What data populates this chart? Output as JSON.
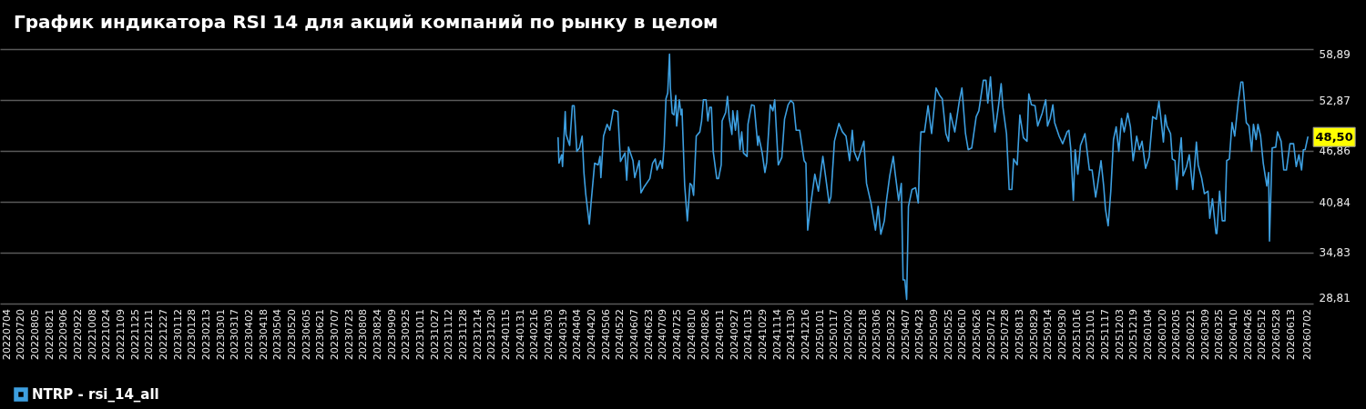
{
  "chart_data": {
    "type": "line",
    "title": "График индикатора RSI 14 для акций компаний по рынку в целом",
    "x": [
      "2024-03-13",
      "2024-03-14",
      "2024-03-17",
      "2024-03-18",
      "2024-03-21",
      "2024-03-22",
      "2024-03-26",
      "2024-03-29",
      "2024-03-31",
      "2024-04-03",
      "2024-04-06",
      "2024-04-09",
      "2024-04-11",
      "2024-04-13",
      "2024-04-17",
      "2024-04-19",
      "2024-04-23",
      "2024-04-27",
      "2024-04-29",
      "2024-04-30",
      "2024-05-03",
      "2024-05-07",
      "2024-05-10",
      "2024-05-14",
      "2024-05-19",
      "2024-05-22",
      "2024-05-27",
      "2024-05-29",
      "2024-05-31",
      "2024-06-05",
      "2024-06-07",
      "2024-06-12",
      "2024-06-14",
      "2024-06-17",
      "2024-06-24",
      "2024-06-27",
      "2024-06-30",
      "2024-07-02",
      "2024-07-06",
      "2024-07-08",
      "2024-07-10",
      "2024-07-12",
      "2024-07-14",
      "2024-07-16",
      "2024-07-17",
      "2024-07-19",
      "2024-07-21",
      "2024-07-23",
      "2024-07-24",
      "2024-07-27",
      "2024-07-29",
      "2024-07-30",
      "2024-08-02",
      "2024-08-05",
      "2024-08-08",
      "2024-08-10",
      "2024-08-12",
      "2024-08-15",
      "2024-08-19",
      "2024-08-21",
      "2024-08-23",
      "2024-08-26",
      "2024-08-28",
      "2024-08-30",
      "2024-09-01",
      "2024-09-03",
      "2024-09-07",
      "2024-09-09",
      "2024-09-12",
      "2024-09-13",
      "2024-09-17",
      "2024-09-19",
      "2024-09-21",
      "2024-09-24",
      "2024-09-25",
      "2024-09-28",
      "2024-09-30",
      "2024-10-03",
      "2024-10-05",
      "2024-10-07",
      "2024-10-11",
      "2024-10-12",
      "2024-10-16",
      "2024-10-19",
      "2024-10-23",
      "2024-10-24",
      "2024-10-28",
      "2024-10-31",
      "2024-11-02",
      "2024-11-06",
      "2024-11-09",
      "2024-11-11",
      "2024-11-15",
      "2024-11-19",
      "2024-11-22",
      "2024-11-26",
      "2024-11-29",
      "2024-12-02",
      "2024-12-05",
      "2024-12-09",
      "2024-12-14",
      "2024-12-16",
      "2024-12-18",
      "2024-12-21",
      "2024-12-26",
      "2024-12-30",
      "2025-01-04",
      "2025-01-07",
      "2025-01-11",
      "2025-01-13",
      "2025-01-17",
      "2025-01-22",
      "2025-01-26",
      "2025-01-30",
      "2025-02-03",
      "2025-02-06",
      "2025-02-08",
      "2025-02-12",
      "2025-02-19",
      "2025-02-22",
      "2025-02-27",
      "2025-03-04",
      "2025-03-07",
      "2025-03-10",
      "2025-03-14",
      "2025-03-16",
      "2025-03-20",
      "2025-03-24",
      "2025-03-26",
      "2025-03-30",
      "2025-04-02",
      "2025-04-04",
      "2025-04-06",
      "2025-04-08",
      "2025-04-10",
      "2025-04-14",
      "2025-04-18",
      "2025-04-21",
      "2025-04-23",
      "2025-04-24",
      "2025-04-28",
      "2025-05-02",
      "2025-05-06",
      "2025-05-11",
      "2025-05-15",
      "2025-05-18",
      "2025-05-22",
      "2025-05-25",
      "2025-05-27",
      "2025-06-01",
      "2025-06-06",
      "2025-06-09",
      "2025-06-13",
      "2025-06-16",
      "2025-06-20",
      "2025-06-25",
      "2025-06-28",
      "2025-07-03",
      "2025-07-06",
      "2025-07-08",
      "2025-07-11",
      "2025-07-13",
      "2025-07-16",
      "2025-07-20",
      "2025-07-23",
      "2025-07-25",
      "2025-07-29",
      "2025-08-01",
      "2025-08-04",
      "2025-08-06",
      "2025-08-10",
      "2025-08-13",
      "2025-08-17",
      "2025-08-21",
      "2025-08-23",
      "2025-08-26",
      "2025-08-30",
      "2025-09-02",
      "2025-09-07",
      "2025-09-11",
      "2025-09-13",
      "2025-09-16",
      "2025-09-19",
      "2025-09-21",
      "2025-09-26",
      "2025-09-30",
      "2025-10-05",
      "2025-10-07",
      "2025-10-09",
      "2025-10-12",
      "2025-10-14",
      "2025-10-17",
      "2025-10-20",
      "2025-10-25",
      "2025-10-30",
      "2025-11-02",
      "2025-11-06",
      "2025-11-08",
      "2025-11-12",
      "2025-11-15",
      "2025-11-17",
      "2025-11-20",
      "2025-11-23",
      "2025-11-26",
      "2025-11-29",
      "2025-12-02",
      "2025-12-05",
      "2025-12-08",
      "2025-12-12",
      "2025-12-15",
      "2025-12-18",
      "2025-12-22",
      "2025-12-25",
      "2025-12-28",
      "2026-01-01",
      "2026-01-05",
      "2026-01-09",
      "2026-01-13",
      "2026-01-16",
      "2026-01-18",
      "2026-01-21",
      "2026-01-23",
      "2026-01-25",
      "2026-01-29",
      "2026-01-31",
      "2026-02-03",
      "2026-02-05",
      "2026-02-08",
      "2026-02-10",
      "2026-02-12",
      "2026-02-16",
      "2026-02-19",
      "2026-02-23",
      "2026-02-27",
      "2026-03-01",
      "2026-03-05",
      "2026-03-08",
      "2026-03-12",
      "2026-03-14",
      "2026-03-17",
      "2026-03-21",
      "2026-03-22",
      "2026-03-25",
      "2026-03-28",
      "2026-03-31",
      "2026-04-02",
      "2026-04-05",
      "2026-04-08",
      "2026-04-11",
      "2026-04-15",
      "2026-04-18",
      "2026-04-20",
      "2026-04-24",
      "2026-04-27",
      "2026-04-30",
      "2026-05-02",
      "2026-05-05",
      "2026-05-07",
      "2026-05-10",
      "2026-05-13",
      "2026-05-17",
      "2026-05-19",
      "2026-05-20",
      "2026-05-23",
      "2026-05-27",
      "2026-05-29",
      "2026-06-02",
      "2026-06-05",
      "2026-06-08",
      "2026-06-12",
      "2026-06-16",
      "2026-06-19",
      "2026-06-22",
      "2026-06-25",
      "2026-06-27",
      "2026-06-29",
      "2026-07-02"
    ],
    "series": [
      {
        "name": "NTRP - rsi_14_all",
        "color": "#3d9fe0",
        "values": [
          48.4,
          45.4,
          46.4,
          45.0,
          51.5,
          48.8,
          47.5,
          52.2,
          52.2,
          46.8,
          47.2,
          48.6,
          44.3,
          41.8,
          38.2,
          40.7,
          45.4,
          45.2,
          46.2,
          43.7,
          48.6,
          50.0,
          49.3,
          51.7,
          51.5,
          45.6,
          46.6,
          43.4,
          47.3,
          45.7,
          43.7,
          45.7,
          41.9,
          42.5,
          43.6,
          45.4,
          45.9,
          44.6,
          45.7,
          44.8,
          47.5,
          53.0,
          53.7,
          58.3,
          54.3,
          51.3,
          51.1,
          53.4,
          49.8,
          52.9,
          51.1,
          51.8,
          42.8,
          38.6,
          43.0,
          42.8,
          41.6,
          48.6,
          49.1,
          50.4,
          52.9,
          52.9,
          50.4,
          52.0,
          52.0,
          46.8,
          43.6,
          43.6,
          45.2,
          50.4,
          51.4,
          53.3,
          50.7,
          48.8,
          51.6,
          49.3,
          51.6,
          47.0,
          49.1,
          46.6,
          46.2,
          50.0,
          52.3,
          52.2,
          47.5,
          48.6,
          46.6,
          44.3,
          45.5,
          52.3,
          51.6,
          52.9,
          45.2,
          46.1,
          50.6,
          52.3,
          52.8,
          52.5,
          49.3,
          49.3,
          45.7,
          45.4,
          37.5,
          40.2,
          44.1,
          42.1,
          46.2,
          43.9,
          40.7,
          41.4,
          48.0,
          50.1,
          49.1,
          48.6,
          45.7,
          49.3,
          46.8,
          45.7,
          48.0,
          43.0,
          40.7,
          37.5,
          40.3,
          37.0,
          38.6,
          40.7,
          43.9,
          46.2,
          44.3,
          41.0,
          43.0,
          31.6,
          31.6,
          29.3,
          40.3,
          42.3,
          42.5,
          40.7,
          47.2,
          49.1,
          49.1,
          52.2,
          48.9,
          54.3,
          53.4,
          53.0,
          48.9,
          48.0,
          51.3,
          49.1,
          52.7,
          54.3,
          48.9,
          47.0,
          47.2,
          50.9,
          51.6,
          55.2,
          55.2,
          52.5,
          55.6,
          52.5,
          49.1,
          52.2,
          54.8,
          52.0,
          48.9,
          42.3,
          42.3,
          45.9,
          45.2,
          51.1,
          48.4,
          48.0,
          53.6,
          52.3,
          52.2,
          49.8,
          51.3,
          52.9,
          49.8,
          50.7,
          52.3,
          50.2,
          48.6,
          47.7,
          49.1,
          49.3,
          47.2,
          41.0,
          47.0,
          44.1,
          47.5,
          48.9,
          44.6,
          44.6,
          41.4,
          42.7,
          45.7,
          42.7,
          40.0,
          38.0,
          42.1,
          48.2,
          49.7,
          46.8,
          50.7,
          49.1,
          51.3,
          49.7,
          45.7,
          48.6,
          47.0,
          48.0,
          44.8,
          46.1,
          50.9,
          50.6,
          52.7,
          50.9,
          47.9,
          51.1,
          49.8,
          48.9,
          45.9,
          45.7,
          42.3,
          46.4,
          48.4,
          43.9,
          45.0,
          46.4,
          42.3,
          47.9,
          45.2,
          43.6,
          41.8,
          42.1,
          38.9,
          41.2,
          37.1,
          37.1,
          42.1,
          38.6,
          38.6,
          45.7,
          45.9,
          50.2,
          48.6,
          52.7,
          55.0,
          55.0,
          50.2,
          49.8,
          46.8,
          50.0,
          48.2,
          50.0,
          48.6,
          45.4,
          42.7,
          44.3,
          36.2,
          47.2,
          47.3,
          49.1,
          48.0,
          44.6,
          44.6,
          47.7,
          47.7,
          45.0,
          46.4,
          44.6,
          47.0,
          47.0,
          48.5
        ]
      }
    ],
    "xlim": [
      "2022-06-26",
      "2026-07-08"
    ],
    "xticks": [
      {
        "value": "2022-07-04",
        "label": "20220704"
      },
      {
        "value": "2022-07-20",
        "label": "20220720"
      },
      {
        "value": "2022-08-05",
        "label": "20220805"
      },
      {
        "value": "2022-08-21",
        "label": "20220821"
      },
      {
        "value": "2022-09-06",
        "label": "20220906"
      },
      {
        "value": "2022-09-22",
        "label": "20220922"
      },
      {
        "value": "2022-10-08",
        "label": "20221008"
      },
      {
        "value": "2022-10-24",
        "label": "20221024"
      },
      {
        "value": "2022-11-09",
        "label": "20221109"
      },
      {
        "value": "2022-11-25",
        "label": "20221125"
      },
      {
        "value": "2022-12-11",
        "label": "20221211"
      },
      {
        "value": "2022-12-27",
        "label": "20221227"
      },
      {
        "value": "2023-01-12",
        "label": "20230112"
      },
      {
        "value": "2023-01-28",
        "label": "20230128"
      },
      {
        "value": "2023-02-13",
        "label": "20230213"
      },
      {
        "value": "2023-03-01",
        "label": "20230301"
      },
      {
        "value": "2023-03-17",
        "label": "20230317"
      },
      {
        "value": "2023-04-02",
        "label": "20230402"
      },
      {
        "value": "2023-04-18",
        "label": "20230418"
      },
      {
        "value": "2023-05-04",
        "label": "20230504"
      },
      {
        "value": "2023-05-20",
        "label": "20230520"
      },
      {
        "value": "2023-06-05",
        "label": "20230605"
      },
      {
        "value": "2023-06-21",
        "label": "20230621"
      },
      {
        "value": "2023-07-07",
        "label": "20230707"
      },
      {
        "value": "2023-07-23",
        "label": "20230723"
      },
      {
        "value": "2023-08-08",
        "label": "20230808"
      },
      {
        "value": "2023-08-24",
        "label": "20230824"
      },
      {
        "value": "2023-09-09",
        "label": "20230909"
      },
      {
        "value": "2023-09-25",
        "label": "20230925"
      },
      {
        "value": "2023-10-11",
        "label": "20231011"
      },
      {
        "value": "2023-10-27",
        "label": "20231027"
      },
      {
        "value": "2023-11-12",
        "label": "20231112"
      },
      {
        "value": "2023-11-28",
        "label": "20231128"
      },
      {
        "value": "2023-12-14",
        "label": "20231214"
      },
      {
        "value": "2023-12-30",
        "label": "20231230"
      },
      {
        "value": "2024-01-15",
        "label": "20240115"
      },
      {
        "value": "2024-01-31",
        "label": "20240131"
      },
      {
        "value": "2024-02-16",
        "label": "20240216"
      },
      {
        "value": "2024-03-03",
        "label": "20240303"
      },
      {
        "value": "2024-03-19",
        "label": "20240319"
      },
      {
        "value": "2024-04-04",
        "label": "20240404"
      },
      {
        "value": "2024-04-20",
        "label": "20240420"
      },
      {
        "value": "2024-05-06",
        "label": "20240506"
      },
      {
        "value": "2024-05-22",
        "label": "20240522"
      },
      {
        "value": "2024-06-07",
        "label": "20240607"
      },
      {
        "value": "2024-06-23",
        "label": "20240623"
      },
      {
        "value": "2024-07-09",
        "label": "20240709"
      },
      {
        "value": "2024-07-25",
        "label": "20240725"
      },
      {
        "value": "2024-08-10",
        "label": "20240810"
      },
      {
        "value": "2024-08-26",
        "label": "20240826"
      },
      {
        "value": "2024-09-11",
        "label": "20240911"
      },
      {
        "value": "2024-09-27",
        "label": "20240927"
      },
      {
        "value": "2024-10-13",
        "label": "20241013"
      },
      {
        "value": "2024-10-29",
        "label": "20241029"
      },
      {
        "value": "2024-11-14",
        "label": "20241114"
      },
      {
        "value": "2024-11-30",
        "label": "20241130"
      },
      {
        "value": "2024-12-16",
        "label": "20241216"
      },
      {
        "value": "2025-01-01",
        "label": "20250101"
      },
      {
        "value": "2025-01-17",
        "label": "20250117"
      },
      {
        "value": "2025-02-02",
        "label": "20250202"
      },
      {
        "value": "2025-02-18",
        "label": "20250218"
      },
      {
        "value": "2025-03-06",
        "label": "20250306"
      },
      {
        "value": "2025-03-22",
        "label": "20250322"
      },
      {
        "value": "2025-04-07",
        "label": "20250407"
      },
      {
        "value": "2025-04-23",
        "label": "20250423"
      },
      {
        "value": "2025-05-09",
        "label": "20250509"
      },
      {
        "value": "2025-05-25",
        "label": "20250525"
      },
      {
        "value": "2025-06-10",
        "label": "20250610"
      },
      {
        "value": "2025-06-26",
        "label": "20250626"
      },
      {
        "value": "2025-07-12",
        "label": "20250712"
      },
      {
        "value": "2025-07-28",
        "label": "20250728"
      },
      {
        "value": "2025-08-13",
        "label": "20250813"
      },
      {
        "value": "2025-08-29",
        "label": "20250829"
      },
      {
        "value": "2025-09-14",
        "label": "20250914"
      },
      {
        "value": "2025-09-30",
        "label": "20250930"
      },
      {
        "value": "2025-10-16",
        "label": "20251016"
      },
      {
        "value": "2025-11-01",
        "label": "20251101"
      },
      {
        "value": "2025-11-17",
        "label": "20251117"
      },
      {
        "value": "2025-12-03",
        "label": "20251203"
      },
      {
        "value": "2025-12-19",
        "label": "20251219"
      },
      {
        "value": "2026-01-04",
        "label": "20260104"
      },
      {
        "value": "2026-01-20",
        "label": "20260120"
      },
      {
        "value": "2026-02-05",
        "label": "20260205"
      },
      {
        "value": "2026-02-21",
        "label": "20260221"
      },
      {
        "value": "2026-03-09",
        "label": "20260309"
      },
      {
        "value": "2026-03-25",
        "label": "20260325"
      },
      {
        "value": "2026-04-10",
        "label": "20260410"
      },
      {
        "value": "2026-04-26",
        "label": "20260426"
      },
      {
        "value": "2026-05-12",
        "label": "20260512"
      },
      {
        "value": "2026-05-28",
        "label": "20260528"
      },
      {
        "value": "2026-06-13",
        "label": "20260613"
      },
      {
        "value": "2026-07-02",
        "label": "20260702"
      }
    ],
    "ylim": [
      28.81,
      58.89
    ],
    "yticks": [
      {
        "value": 28.81,
        "label": "28,81"
      },
      {
        "value": 34.83,
        "label": "34,83"
      },
      {
        "value": 40.84,
        "label": "40,84"
      },
      {
        "value": 46.86,
        "label": "46,86"
      },
      {
        "value": 52.87,
        "label": "52,87"
      },
      {
        "value": 58.89,
        "label": "58,89"
      }
    ],
    "grid": "y",
    "legend": "bottom",
    "annotations": [
      {
        "text": "48,50",
        "x": "2026-07-02",
        "y": 48.5
      }
    ]
  }
}
